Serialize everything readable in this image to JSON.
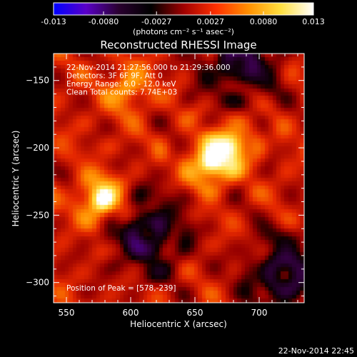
{
  "colorbar": {
    "ticks": [
      "-0.013",
      "-0.0080",
      "-0.0027",
      "0.0027",
      "0.0080",
      "0.013"
    ],
    "units": "(photons cm⁻² s⁻¹ asec⁻²)",
    "range": [
      -0.013,
      0.013
    ],
    "colors": [
      "#0000ff",
      "#5a00c8",
      "#2a0030",
      "#000000",
      "#a00000",
      "#ff3000",
      "#ff9000",
      "#ffe040",
      "#ffffff"
    ]
  },
  "chart_data": {
    "type": "heatmap",
    "title": "Reconstructed RHESSI Image",
    "xlabel": "Heliocentric X (arcsec)",
    "ylabel": "Heliocentric Y (arcsec)",
    "xlim": [
      540,
      735
    ],
    "ylim": [
      -315,
      -130
    ],
    "xticks": [
      550,
      600,
      650,
      700
    ],
    "yticks": [
      -150,
      -200,
      -250,
      -300
    ],
    "info_lines": [
      "22-Nov-2014 21:27:56.000 to 21:29:36.000",
      "Detectors: 3F 6F 9F, Att 0",
      "Energy Range: 6.0 - 12.0 keV",
      "Clean     Total counts: 7.74E+03"
    ],
    "peak_label": "Position of Peak = [578,-239]",
    "sources": [
      {
        "x": 578,
        "y": -239,
        "intensity": 1.0
      },
      {
        "x": 662,
        "y": -212,
        "intensity": 0.95
      },
      {
        "x": 680,
        "y": -198,
        "intensity": 0.7
      },
      {
        "x": 598,
        "y": -156,
        "intensity": 0.5
      }
    ],
    "dark_spots": [
      {
        "x": 613,
        "y": -265
      },
      {
        "x": 685,
        "y": -135
      },
      {
        "x": 720,
        "y": -295
      }
    ]
  },
  "footer": {
    "timestamp": "22-Nov-2014 22:45"
  }
}
